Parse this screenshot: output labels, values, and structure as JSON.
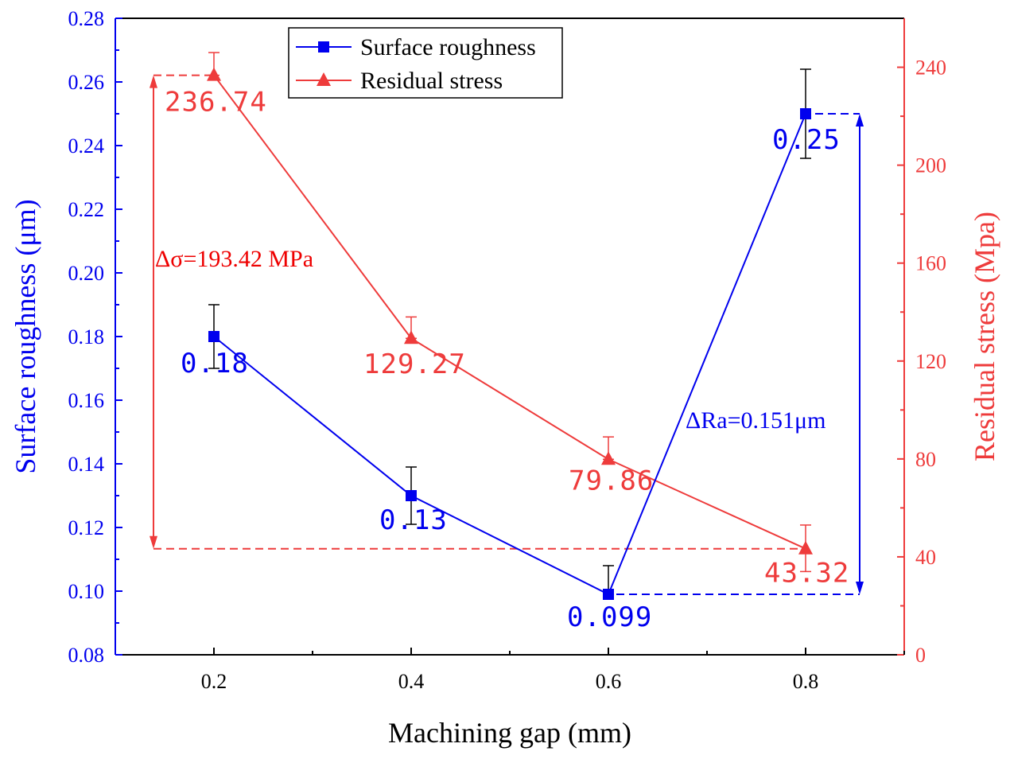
{
  "chart_data": {
    "type": "line",
    "xlabel": "Machining gap (mm)",
    "ylabel_left": "Surface roughness (μm)",
    "ylabel_right": "Residual stress (Mpa)",
    "x": [
      0.2,
      0.4,
      0.6,
      0.8
    ],
    "x_tick_labels": [
      "0.2",
      "0.4",
      "0.6",
      "0.8"
    ],
    "xlim": [
      0.1,
      0.9
    ],
    "ylim_left": [
      0.08,
      0.28
    ],
    "ylim_right": [
      0,
      260
    ],
    "y_left_tick_labels": [
      "0.08",
      "0.10",
      "0.12",
      "0.14",
      "0.16",
      "0.18",
      "0.20",
      "0.22",
      "0.24",
      "0.26",
      "0.28"
    ],
    "y_right_tick_labels": [
      "0",
      "40",
      "80",
      "120",
      "160",
      "200",
      "240"
    ],
    "series": [
      {
        "name": "Surface roughness",
        "axis": "left",
        "marker": "square",
        "color": "#0000ee",
        "values": [
          0.18,
          0.13,
          0.099,
          0.25
        ],
        "error_upper": [
          0.19,
          0.139,
          0.108,
          0.264
        ],
        "error_lower": [
          0.17,
          0.121,
          0.099,
          0.236
        ],
        "labels": [
          "0.18",
          "0.13",
          "0.099",
          "0.25"
        ]
      },
      {
        "name": "Residual stress",
        "axis": "right",
        "marker": "triangle",
        "color": "#ee3b3b",
        "values": [
          236.74,
          129.27,
          79.86,
          43.32
        ],
        "error_upper": [
          246,
          138,
          89,
          53
        ],
        "error_lower": [
          236.74,
          129.27,
          79.86,
          34
        ],
        "labels": [
          "236.74",
          "129.27",
          "79.86",
          "43.32"
        ]
      }
    ],
    "annotations": [
      {
        "text": "Δσ=193.42 MPa",
        "color": "#ee0000"
      },
      {
        "text": "ΔRa=0.151μm",
        "color": "#0000ee"
      }
    ],
    "legend_position": "top-center"
  }
}
